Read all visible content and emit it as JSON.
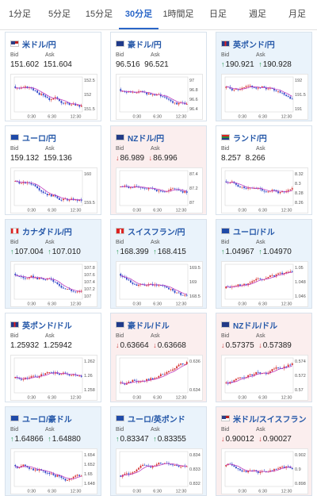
{
  "tabs": [
    {
      "label": "1分足",
      "active": false
    },
    {
      "label": "5分足",
      "active": false
    },
    {
      "label": "15分足",
      "active": false
    },
    {
      "label": "30分足",
      "active": true
    },
    {
      "label": "1時間足",
      "active": false
    },
    {
      "label": "日足",
      "active": false
    },
    {
      "label": "週足",
      "active": false
    },
    {
      "label": "月足",
      "active": false
    }
  ],
  "labels": {
    "bid": "Bid",
    "ask": "Ask"
  },
  "colors": {
    "up_bg": "#eaf3fb",
    "down_bg": "#fbeeee",
    "title": "#2457a8",
    "bull": "#d42a2a",
    "bear": "#2d45c8",
    "ma": "#c040c0",
    "arrow_up": "#2a9a55",
    "arrow_down": "#d04545"
  },
  "cards": [
    {
      "id": "usdjpy",
      "flag": "us",
      "pair": "米ドル/円",
      "bid": "151.602",
      "ask": "151.604",
      "dir": "none",
      "trend": -0.6,
      "yticks": [
        "152.5",
        "152",
        "151.5"
      ],
      "xticks": [
        "0:30",
        "6:30",
        "12:30"
      ]
    },
    {
      "id": "audjpy",
      "flag": "au",
      "pair": "豪ドル/円",
      "bid": "96.516",
      "ask": "96.521",
      "dir": "none",
      "trend": -0.4,
      "yticks": [
        "97",
        "96.8",
        "96.6",
        "96.4"
      ],
      "xticks": [
        "0:30",
        "6:30",
        "12:30"
      ]
    },
    {
      "id": "gbpjpy",
      "flag": "gb",
      "pair": "英ポンド/円",
      "bid": "190.921",
      "ask": "190.928",
      "dir": "up",
      "trend": -0.5,
      "yticks": [
        "192",
        "191.5",
        "191"
      ],
      "xticks": [
        "0:30",
        "6:30",
        "12:30"
      ]
    },
    {
      "id": "eurjpy",
      "flag": "eu",
      "pair": "ユーロ/円",
      "bid": "159.132",
      "ask": "159.136",
      "dir": "none",
      "trend": -0.5,
      "yticks": [
        "160",
        "159.5"
      ],
      "xticks": [
        "0:30",
        "6:30",
        "12:30"
      ]
    },
    {
      "id": "nzdjpy",
      "flag": "nz",
      "pair": "NZドル/円",
      "bid": "86.989",
      "ask": "86.996",
      "dir": "down",
      "trend": -0.1,
      "yticks": [
        "87.4",
        "87.2",
        "87"
      ],
      "xticks": [
        "0:30",
        "6:30",
        "12:30"
      ]
    },
    {
      "id": "zarjpy",
      "flag": "za",
      "pair": "ランド/円",
      "bid": "8.257",
      "ask": "8.266",
      "dir": "none",
      "trend": -0.5,
      "yticks": [
        "8.32",
        "8.3",
        "8.28",
        "8.26"
      ],
      "xticks": [
        "0:30",
        "6:30",
        "12:30"
      ]
    },
    {
      "id": "cadjpy",
      "flag": "ca",
      "pair": "カナダドル/円",
      "bid": "107.004",
      "ask": "107.010",
      "dir": "up",
      "trend": -0.6,
      "yticks": [
        "107.8",
        "107.6",
        "107.4",
        "107.2",
        "107"
      ],
      "xticks": [
        "0:30",
        "6:30",
        "12:30"
      ]
    },
    {
      "id": "chfjpy",
      "flag": "ch",
      "pair": "スイスフラン/円",
      "bid": "168.399",
      "ask": "168.415",
      "dir": "up",
      "trend": -0.6,
      "yticks": [
        "169.5",
        "169",
        "168.5"
      ],
      "xticks": [
        "0:30",
        "6:30",
        "12:30"
      ]
    },
    {
      "id": "eurusd",
      "flag": "eu",
      "pair": "ユーロ/ドル",
      "bid": "1.04967",
      "ask": "1.04970",
      "dir": "up",
      "trend": 0.5,
      "yticks": [
        "1.05",
        "1.048",
        "1.046"
      ],
      "xticks": [
        "0:30",
        "6:30",
        "12:30"
      ]
    },
    {
      "id": "gbpusd",
      "flag": "gb",
      "pair": "英ポンド/ドル",
      "bid": "1.25932",
      "ask": "1.25942",
      "dir": "none",
      "trend": 0.2,
      "yticks": [
        "1.262",
        "1.26",
        "1.258"
      ],
      "xticks": [
        "0:30",
        "6:30",
        "12:30"
      ]
    },
    {
      "id": "audusd",
      "flag": "au",
      "pair": "豪ドル/ドル",
      "bid": "0.63664",
      "ask": "0.63668",
      "dir": "down",
      "trend": 0.6,
      "yticks": [
        "0.636",
        "0.634"
      ],
      "xticks": [
        "0:30",
        "6:30",
        "12:30"
      ]
    },
    {
      "id": "nzdusd",
      "flag": "nz",
      "pair": "NZドル/ドル",
      "bid": "0.57375",
      "ask": "0.57389",
      "dir": "down",
      "trend": 0.55,
      "yticks": [
        "0.574",
        "0.572",
        "0.57"
      ],
      "xticks": [
        "0:30",
        "6:30",
        "12:30"
      ]
    },
    {
      "id": "euraud",
      "flag": "eu",
      "pair": "ユーロ/豪ドル",
      "bid": "1.64866",
      "ask": "1.64880",
      "dir": "up",
      "trend": -0.3,
      "yticks": [
        "1.654",
        "1.652",
        "1.65",
        "1.648"
      ],
      "xticks": [
        "0:30",
        "6:30",
        "12:30"
      ]
    },
    {
      "id": "eurgbp",
      "flag": "eu",
      "pair": "ユーロ/英ポンド",
      "bid": "0.83347",
      "ask": "0.83355",
      "dir": "up",
      "trend": 0.5,
      "yticks": [
        "0.834",
        "0.833",
        "0.832"
      ],
      "xticks": [
        "0:30",
        "6:30",
        "12:30"
      ]
    },
    {
      "id": "usdchf",
      "flag": "us",
      "pair": "米ドル/スイスフラン",
      "bid": "0.90012",
      "ask": "0.90027",
      "dir": "down",
      "trend": -0.2,
      "yticks": [
        "0.902",
        "0.9",
        "0.898"
      ],
      "xticks": [
        "0:30",
        "6:30",
        "12:30"
      ]
    }
  ]
}
